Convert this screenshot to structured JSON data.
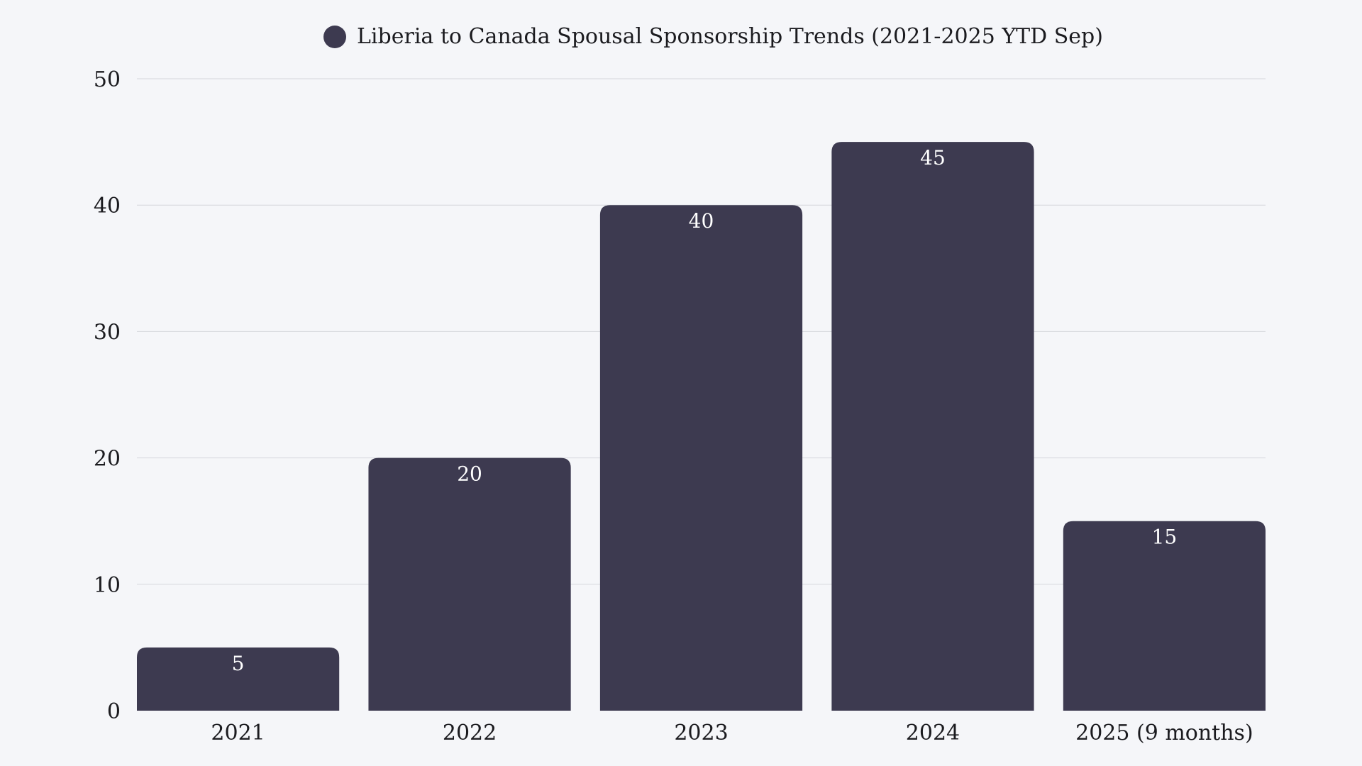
{
  "chart_data": {
    "type": "bar",
    "title": "",
    "legend": [
      {
        "name": "Liberia to Canada Spousal Sponsorship Trends (2021-2025 YTD Sep)",
        "color": "#3d3a50"
      }
    ],
    "legend_placement": "top-center",
    "categories": [
      "2021",
      "2022",
      "2023",
      "2024",
      "2025 (9 months)"
    ],
    "series": [
      {
        "name": "Liberia to Canada Spousal Sponsorship Trends (2021-2025 YTD Sep)",
        "values": [
          5,
          20,
          40,
          45,
          15
        ]
      }
    ],
    "xlabel": "",
    "ylabel": "",
    "ylim": [
      0,
      50
    ],
    "yticks": [
      0,
      10,
      20,
      30,
      40,
      50
    ],
    "grid": true,
    "data_labels": true,
    "colors": {
      "bar": "#3d3a50",
      "background": "#f5f6f9",
      "grid": "#d5d7dc",
      "label": "#ffffff"
    }
  }
}
